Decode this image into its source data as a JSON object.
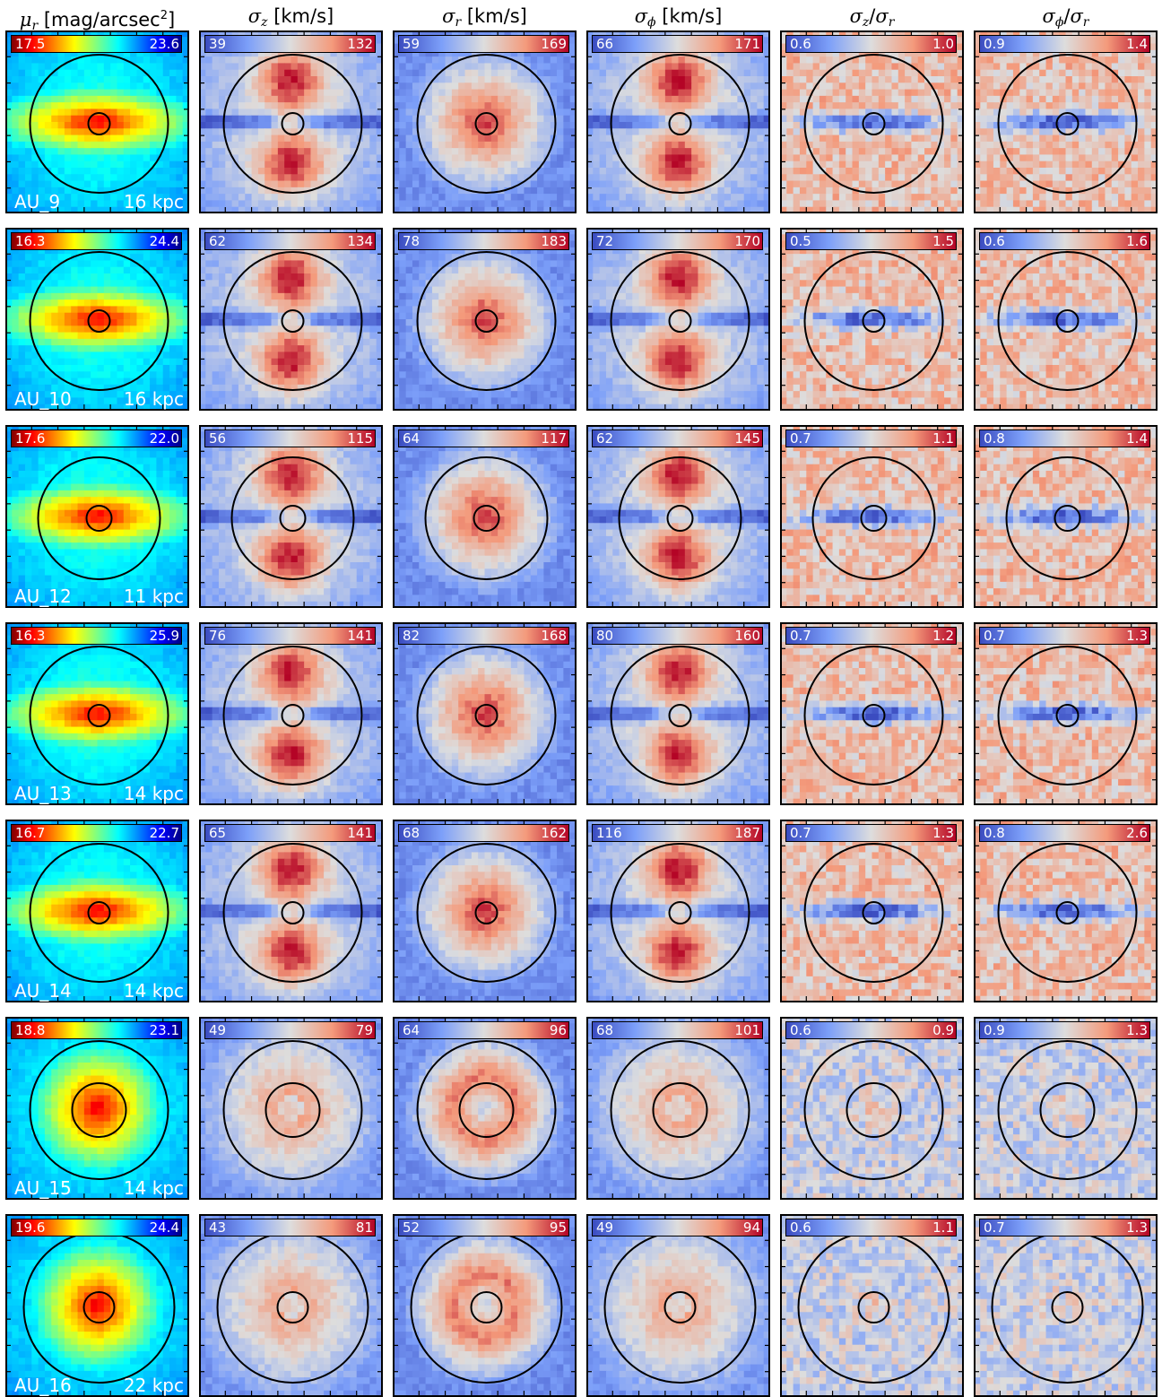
{
  "columns": [
    {
      "id": "mu_r",
      "sym": "μ",
      "sub": "r",
      "unit": " [mag/arcsec",
      "sup": "2",
      "tail": "]"
    },
    {
      "id": "sig_z",
      "sym": "σ",
      "sub": "z",
      "unit": " [km/s]"
    },
    {
      "id": "sig_r",
      "sym": "σ",
      "sub": "r",
      "unit": " [km/s]"
    },
    {
      "id": "sig_phi",
      "sym": "σ",
      "sub": "ϕ",
      "unit": " [km/s]"
    },
    {
      "id": "ratio_zr",
      "sym": "σ",
      "sub": "z",
      "slash": "/",
      "sym2": "σ",
      "sub2": "r"
    },
    {
      "id": "ratio_phir",
      "sym": "σ",
      "sub": "ϕ",
      "slash": "/",
      "sym2": "σ",
      "sub2": "r"
    }
  ],
  "colormaps": {
    "mu_r": "jet",
    "others": "coolwarm"
  },
  "chart_data": {
    "type": "heatmap",
    "rows": [
      {
        "galaxy": "AU_9",
        "scale": "16 kpc",
        "ranges": [
          [
            "17.5",
            "23.6"
          ],
          [
            "39",
            "132"
          ],
          [
            "59",
            "169"
          ],
          [
            "66",
            "171"
          ],
          [
            "0.6",
            "1.0"
          ],
          [
            "0.9",
            "1.4"
          ]
        ]
      },
      {
        "galaxy": "AU_10",
        "scale": "16 kpc",
        "ranges": [
          [
            "16.3",
            "24.4"
          ],
          [
            "62",
            "134"
          ],
          [
            "78",
            "183"
          ],
          [
            "72",
            "170"
          ],
          [
            "0.5",
            "1.5"
          ],
          [
            "0.6",
            "1.6"
          ]
        ]
      },
      {
        "galaxy": "AU_12",
        "scale": "11 kpc",
        "ranges": [
          [
            "17.6",
            "22.0"
          ],
          [
            "56",
            "115"
          ],
          [
            "64",
            "117"
          ],
          [
            "62",
            "145"
          ],
          [
            "0.7",
            "1.1"
          ],
          [
            "0.8",
            "1.4"
          ]
        ]
      },
      {
        "galaxy": "AU_13",
        "scale": "14 kpc",
        "ranges": [
          [
            "16.3",
            "25.9"
          ],
          [
            "76",
            "141"
          ],
          [
            "82",
            "168"
          ],
          [
            "80",
            "160"
          ],
          [
            "0.7",
            "1.2"
          ],
          [
            "0.7",
            "1.3"
          ]
        ]
      },
      {
        "galaxy": "AU_14",
        "scale": "14 kpc",
        "ranges": [
          [
            "16.7",
            "22.7"
          ],
          [
            "65",
            "141"
          ],
          [
            "68",
            "162"
          ],
          [
            "116",
            "187"
          ],
          [
            "0.7",
            "1.3"
          ],
          [
            "0.8",
            "2.6"
          ]
        ]
      },
      {
        "galaxy": "AU_15",
        "scale": "14 kpc",
        "ranges": [
          [
            "18.8",
            "23.1"
          ],
          [
            "49",
            "79"
          ],
          [
            "64",
            "96"
          ],
          [
            "68",
            "101"
          ],
          [
            "0.6",
            "0.9"
          ],
          [
            "0.9",
            "1.3"
          ]
        ]
      },
      {
        "galaxy": "AU_16",
        "scale": "22 kpc",
        "ranges": [
          [
            "19.6",
            "24.4"
          ],
          [
            "43",
            "81"
          ],
          [
            "52",
            "95"
          ],
          [
            "49",
            "94"
          ],
          [
            "0.6",
            "1.1"
          ],
          [
            "0.7",
            "1.3"
          ]
        ]
      }
    ]
  }
}
